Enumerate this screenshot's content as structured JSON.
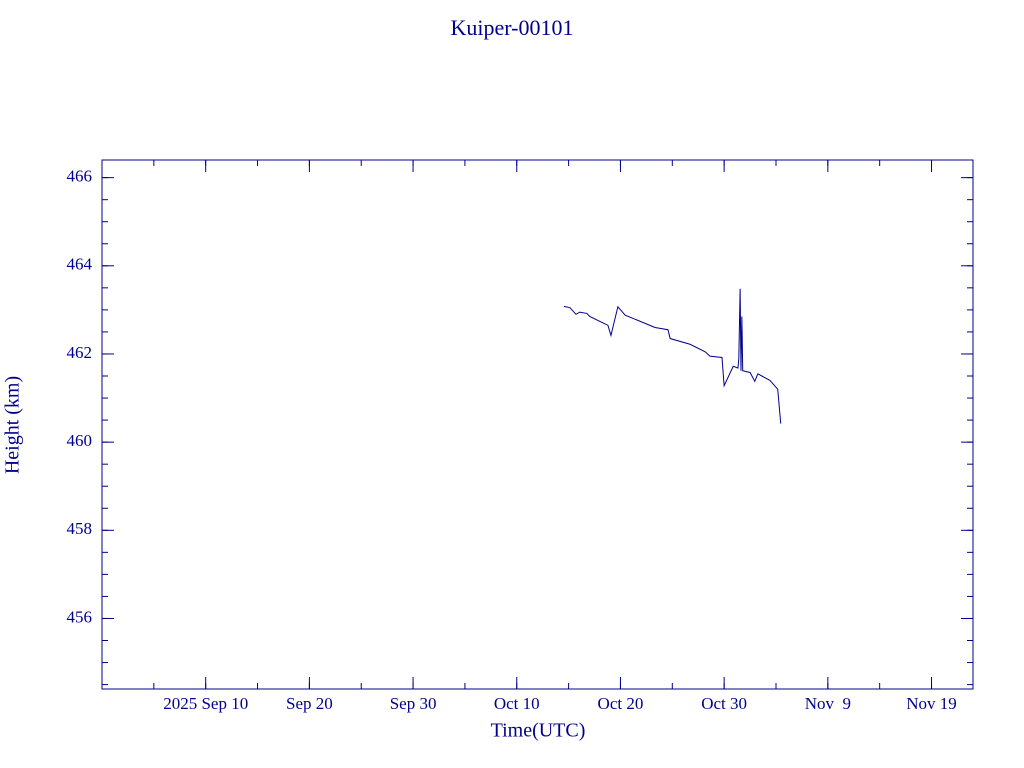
{
  "chart_data": {
    "type": "line",
    "title": "Kuiper-00101",
    "xlabel": "Time(UTC)",
    "ylabel": "Height (km)",
    "xlim": [
      "2025-08-31T00:00",
      "2025-11-23T00:00"
    ],
    "xticks": [
      {
        "value": "2025-09-10T00:00",
        "label": "2025 Sep 10"
      },
      {
        "value": "2025-09-20T00:00",
        "label": "Sep 20"
      },
      {
        "value": "2025-09-30T00:00",
        "label": "Sep 30"
      },
      {
        "value": "2025-10-10T00:00",
        "label": "Oct 10"
      },
      {
        "value": "2025-10-20T00:00",
        "label": "Oct 20"
      },
      {
        "value": "2025-10-30T00:00",
        "label": "Oct 30"
      },
      {
        "value": "2025-11-09T00:00",
        "label": "Nov  9"
      },
      {
        "value": "2025-11-19T00:00",
        "label": "Nov 19"
      }
    ],
    "ylim": [
      454.4,
      466.4
    ],
    "yticks": [
      456,
      458,
      460,
      462,
      464,
      466
    ],
    "x": [
      "2025-10-14T13:00",
      "2025-10-15T03:00",
      "2025-10-15T17:00",
      "2025-10-16T02:00",
      "2025-10-16T18:00",
      "2025-10-17T01:00",
      "2025-10-18T19:00",
      "2025-10-19T02:00",
      "2025-10-19T18:00",
      "2025-10-20T11:00",
      "2025-10-23T08:00",
      "2025-10-24T14:00",
      "2025-10-24T19:00",
      "2025-10-26T17:00",
      "2025-10-28T04:00",
      "2025-10-28T15:00",
      "2025-10-29T19:00",
      "2025-10-30T00:00",
      "2025-10-30T21:00",
      "2025-10-31T08:00",
      "2025-10-31T10:00",
      "2025-10-31T13:00",
      "2025-10-31T15:00",
      "2025-10-31T17:00",
      "2025-10-31T19:00",
      "2025-11-01T12:00",
      "2025-11-01T23:00",
      "2025-11-02T06:00",
      "2025-11-03T10:00",
      "2025-11-04T04:00",
      "2025-11-04T11:00"
    ],
    "series": [
      {
        "color": "#00008b",
        "values": [
          463.08,
          463.05,
          462.9,
          462.95,
          462.92,
          462.85,
          462.65,
          462.42,
          463.07,
          462.88,
          462.6,
          462.55,
          462.35,
          462.22,
          462.05,
          461.95,
          461.92,
          461.28,
          461.72,
          461.68,
          461.9,
          463.48,
          461.62,
          462.85,
          461.62,
          461.58,
          461.38,
          461.55,
          461.4,
          461.2,
          460.42
        ]
      }
    ]
  }
}
